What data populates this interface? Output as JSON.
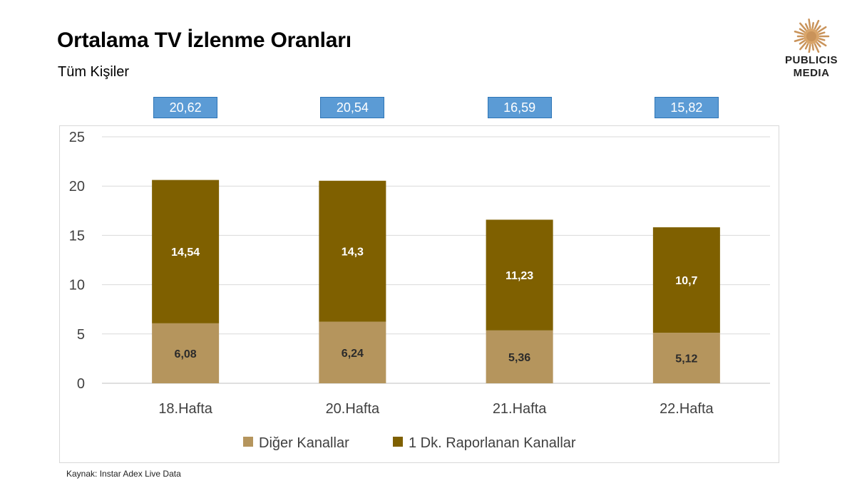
{
  "header": {
    "title": "Ortalama TV İzlenme Oranları",
    "subtitle": "Tüm Kişiler"
  },
  "logo": {
    "line1": "PUBLICIS",
    "line2": "MEDIA",
    "icon": "sun-lion-icon",
    "color": "#c9935a"
  },
  "chart_data": {
    "type": "bar",
    "stacked": true,
    "categories": [
      "18.Hafta",
      "20.Hafta",
      "21.Hafta",
      "22.Hafta"
    ],
    "series": [
      {
        "name": "Diğer Kanallar",
        "values": [
          6.08,
          6.24,
          5.36,
          5.12
        ],
        "color": "#b5955d",
        "label_color": "#2b2b2b"
      },
      {
        "name": "1 Dk. Raporlanan Kanallar",
        "values": [
          14.54,
          14.3,
          11.23,
          10.7
        ],
        "color": "#7f6000",
        "label_color": "#ffffff"
      }
    ],
    "value_labels": [
      [
        "6,08",
        "6,24",
        "5,36",
        "5,12"
      ],
      [
        "14,54",
        "14,3",
        "11,23",
        "10,7"
      ]
    ],
    "totals": [
      "20,62",
      "20,54",
      "16,59",
      "15,82"
    ],
    "ylim": [
      0,
      25
    ],
    "yticks": [
      "0",
      "5",
      "10",
      "15",
      "20",
      "25"
    ],
    "grid": true,
    "legend_position": "bottom",
    "xlabel": "",
    "ylabel": ""
  },
  "footer": {
    "source": "Kaynak: Instar  Adex Live Data"
  }
}
